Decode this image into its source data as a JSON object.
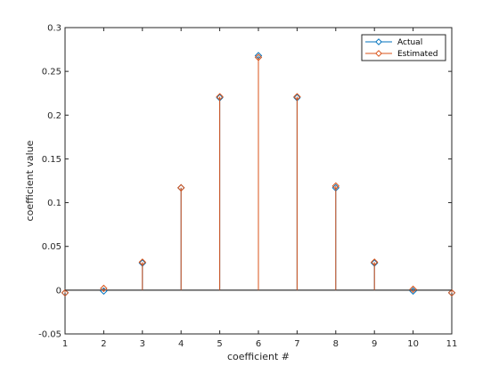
{
  "chart_data": {
    "type": "stem",
    "title": "",
    "xlabel": "coefficient #",
    "ylabel": "coefficient value",
    "xlim": [
      1,
      11
    ],
    "ylim": [
      -0.05,
      0.3
    ],
    "xticks": [
      "1",
      "2",
      "3",
      "4",
      "5",
      "6",
      "7",
      "8",
      "9",
      "10",
      "11"
    ],
    "yticks": [
      "-0.05",
      "0",
      "0.05",
      "0.1",
      "0.15",
      "0.2",
      "0.25",
      "0.3"
    ],
    "grid": false,
    "legend_position": "top-right",
    "series": [
      {
        "name": "Actual",
        "color": "#0072BD",
        "marker": "diamond",
        "x": [
          1,
          2,
          3,
          4,
          5,
          6,
          7,
          8,
          9,
          10,
          11
        ],
        "values": [
          -0.003,
          -0.001,
          0.031,
          0.117,
          0.22,
          0.268,
          0.22,
          0.117,
          0.031,
          -0.001,
          -0.003
        ]
      },
      {
        "name": "Estimated",
        "color": "#D95319",
        "marker": "diamond",
        "x": [
          1,
          2,
          3,
          4,
          5,
          6,
          7,
          8,
          9,
          10,
          11
        ],
        "values": [
          -0.003,
          0.002,
          0.032,
          0.117,
          0.221,
          0.266,
          0.221,
          0.119,
          0.032,
          0.001,
          -0.003
        ]
      }
    ]
  }
}
